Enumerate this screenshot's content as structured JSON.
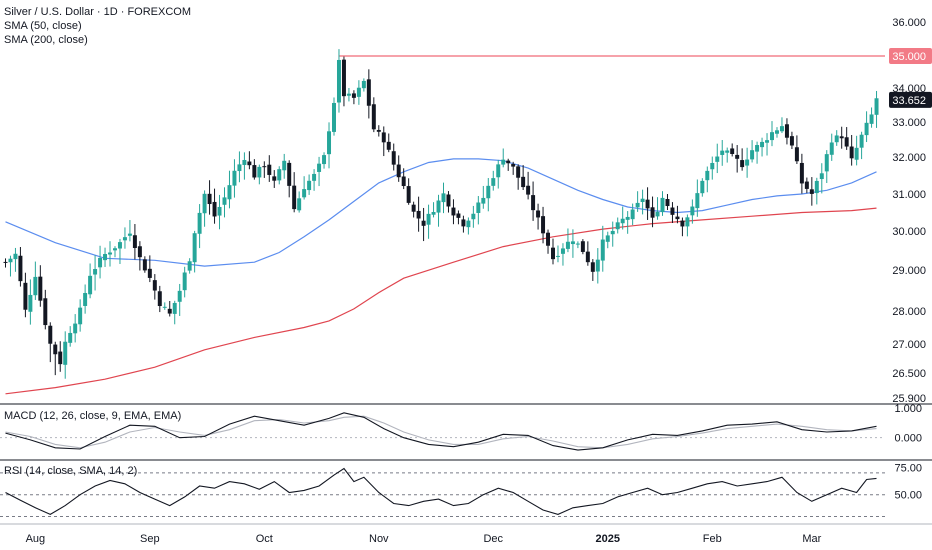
{
  "header": {
    "symbol_title": "Silver / U.S. Dollar · 1D · FOREXCOM",
    "sma50_label": "SMA (50, close)",
    "sma200_label": "SMA (200, close)"
  },
  "colors": {
    "up": "#26a69a",
    "down": "#131722",
    "sma50": "#5b8def",
    "sma200": "#e0454f",
    "resistance": "#f06a78",
    "macd_line": "#131722",
    "signal_line": "#b2b5be",
    "rsi_line": "#131722",
    "axis_text": "#131722",
    "price_tag_bg": "#131722",
    "resistance_tag_bg": "#f27a86"
  },
  "chart_data": {
    "type": "candlestick",
    "symbol": "Silver / U.S. Dollar",
    "interval": "1D",
    "price_axis": {
      "ticks": [
        "36.000",
        "35.000",
        "34.000",
        "33.000",
        "32.000",
        "31.000",
        "30.000",
        "29.000",
        "28.000",
        "27.000",
        "26.500",
        "25.900"
      ],
      "range": [
        25.9,
        36.3
      ]
    },
    "time_axis": {
      "labels": [
        "Aug",
        "Sep",
        "Oct",
        "Nov",
        "Dec",
        "2025",
        "Feb",
        "Mar"
      ],
      "label_bar_index": [
        6,
        29,
        52,
        75,
        98,
        121,
        142,
        162
      ]
    },
    "resistance": {
      "value": 35.0,
      "label": "35.000",
      "from_bar": 67
    },
    "last_price": {
      "value": 33.652,
      "label": "33.652"
    },
    "ohlc_points": [
      [
        0,
        29.2
      ],
      [
        2,
        29.4
      ],
      [
        4,
        28.0
      ],
      [
        6,
        28.9
      ],
      [
        9,
        27.0
      ],
      [
        11,
        26.7
      ],
      [
        13,
        27.4
      ],
      [
        15,
        28.0
      ],
      [
        17,
        28.9
      ],
      [
        20,
        29.4
      ],
      [
        23,
        29.7
      ],
      [
        25,
        30.0
      ],
      [
        27,
        29.3
      ],
      [
        29,
        28.8
      ],
      [
        31,
        28.2
      ],
      [
        33,
        27.9
      ],
      [
        35,
        28.5
      ],
      [
        37,
        29.3
      ],
      [
        38,
        30.0
      ],
      [
        40,
        31.0
      ],
      [
        42,
        30.4
      ],
      [
        44,
        30.9
      ],
      [
        46,
        31.6
      ],
      [
        48,
        32.0
      ],
      [
        50,
        31.5
      ],
      [
        52,
        31.8
      ],
      [
        54,
        31.3
      ],
      [
        56,
        31.9
      ],
      [
        58,
        30.6
      ],
      [
        60,
        31.2
      ],
      [
        62,
        31.5
      ],
      [
        64,
        32.0
      ],
      [
        66,
        33.6
      ],
      [
        67,
        34.8
      ],
      [
        68,
        33.8
      ],
      [
        70,
        33.7
      ],
      [
        72,
        34.2
      ],
      [
        74,
        32.8
      ],
      [
        76,
        32.5
      ],
      [
        78,
        31.8
      ],
      [
        80,
        31.2
      ],
      [
        82,
        30.5
      ],
      [
        84,
        30.2
      ],
      [
        86,
        30.6
      ],
      [
        88,
        31.0
      ],
      [
        90,
        30.5
      ],
      [
        92,
        30.2
      ],
      [
        94,
        30.5
      ],
      [
        96,
        30.9
      ],
      [
        98,
        31.5
      ],
      [
        100,
        32.0
      ],
      [
        102,
        31.7
      ],
      [
        104,
        31.2
      ],
      [
        106,
        30.6
      ],
      [
        108,
        30.0
      ],
      [
        110,
        29.3
      ],
      [
        112,
        29.6
      ],
      [
        114,
        29.8
      ],
      [
        116,
        29.5
      ],
      [
        118,
        29.0
      ],
      [
        120,
        29.7
      ],
      [
        122,
        30.0
      ],
      [
        124,
        30.3
      ],
      [
        126,
        30.5
      ],
      [
        128,
        30.9
      ],
      [
        130,
        30.3
      ],
      [
        132,
        30.9
      ],
      [
        134,
        30.5
      ],
      [
        136,
        30.2
      ],
      [
        138,
        30.6
      ],
      [
        140,
        31.4
      ],
      [
        142,
        31.8
      ],
      [
        144,
        32.2
      ],
      [
        146,
        32.0
      ],
      [
        148,
        31.8
      ],
      [
        150,
        32.2
      ],
      [
        152,
        32.4
      ],
      [
        154,
        32.7
      ],
      [
        156,
        32.9
      ],
      [
        158,
        32.3
      ],
      [
        160,
        31.3
      ],
      [
        162,
        31.0
      ],
      [
        164,
        31.6
      ],
      [
        166,
        32.5
      ],
      [
        168,
        32.6
      ],
      [
        170,
        31.9
      ],
      [
        172,
        32.6
      ],
      [
        174,
        33.2
      ],
      [
        175,
        33.7
      ]
    ],
    "sma50": [
      [
        0,
        30.25
      ],
      [
        10,
        29.7
      ],
      [
        20,
        29.3
      ],
      [
        30,
        29.25
      ],
      [
        40,
        29.1
      ],
      [
        50,
        29.2
      ],
      [
        55,
        29.45
      ],
      [
        60,
        29.85
      ],
      [
        65,
        30.3
      ],
      [
        70,
        30.8
      ],
      [
        75,
        31.3
      ],
      [
        80,
        31.6
      ],
      [
        85,
        31.85
      ],
      [
        90,
        31.95
      ],
      [
        95,
        31.95
      ],
      [
        100,
        31.9
      ],
      [
        105,
        31.7
      ],
      [
        110,
        31.4
      ],
      [
        115,
        31.1
      ],
      [
        120,
        30.85
      ],
      [
        125,
        30.65
      ],
      [
        130,
        30.55
      ],
      [
        135,
        30.5
      ],
      [
        140,
        30.55
      ],
      [
        145,
        30.7
      ],
      [
        150,
        30.85
      ],
      [
        155,
        30.95
      ],
      [
        160,
        31.0
      ],
      [
        165,
        31.1
      ],
      [
        170,
        31.3
      ],
      [
        175,
        31.6
      ]
    ],
    "sma200": [
      [
        0,
        26.0
      ],
      [
        10,
        26.15
      ],
      [
        20,
        26.35
      ],
      [
        30,
        26.6
      ],
      [
        40,
        26.9
      ],
      [
        50,
        27.2
      ],
      [
        60,
        27.5
      ],
      [
        65,
        27.7
      ],
      [
        70,
        28.05
      ],
      [
        75,
        28.45
      ],
      [
        80,
        28.8
      ],
      [
        90,
        29.2
      ],
      [
        100,
        29.6
      ],
      [
        110,
        29.85
      ],
      [
        120,
        30.05
      ],
      [
        130,
        30.2
      ],
      [
        140,
        30.3
      ],
      [
        150,
        30.4
      ],
      [
        160,
        30.5
      ],
      [
        170,
        30.55
      ],
      [
        175,
        30.62
      ]
    ],
    "macd": {
      "title": "MACD (12, 26, close, 9, EMA, EMA)",
      "ticks": [
        "1.000",
        "0.000"
      ],
      "range": [
        -0.9,
        1.4
      ],
      "macd_line": [
        [
          0,
          0.2
        ],
        [
          5,
          -0.1
        ],
        [
          10,
          -0.45
        ],
        [
          15,
          -0.5
        ],
        [
          20,
          0.05
        ],
        [
          25,
          0.55
        ],
        [
          30,
          0.5
        ],
        [
          35,
          0.0
        ],
        [
          40,
          0.05
        ],
        [
          45,
          0.6
        ],
        [
          50,
          0.95
        ],
        [
          55,
          0.75
        ],
        [
          60,
          0.55
        ],
        [
          65,
          0.85
        ],
        [
          68,
          1.1
        ],
        [
          72,
          0.9
        ],
        [
          76,
          0.4
        ],
        [
          80,
          0.0
        ],
        [
          85,
          -0.3
        ],
        [
          90,
          -0.4
        ],
        [
          95,
          -0.2
        ],
        [
          100,
          0.15
        ],
        [
          105,
          0.1
        ],
        [
          110,
          -0.35
        ],
        [
          115,
          -0.55
        ],
        [
          120,
          -0.45
        ],
        [
          125,
          -0.1
        ],
        [
          130,
          0.15
        ],
        [
          135,
          0.1
        ],
        [
          140,
          0.3
        ],
        [
          145,
          0.55
        ],
        [
          150,
          0.6
        ],
        [
          155,
          0.7
        ],
        [
          160,
          0.35
        ],
        [
          165,
          0.25
        ],
        [
          170,
          0.3
        ],
        [
          175,
          0.5
        ]
      ],
      "signal_line": [
        [
          0,
          0.25
        ],
        [
          5,
          0.05
        ],
        [
          10,
          -0.3
        ],
        [
          15,
          -0.45
        ],
        [
          20,
          -0.2
        ],
        [
          25,
          0.25
        ],
        [
          30,
          0.45
        ],
        [
          35,
          0.25
        ],
        [
          40,
          0.1
        ],
        [
          45,
          0.35
        ],
        [
          50,
          0.75
        ],
        [
          55,
          0.8
        ],
        [
          60,
          0.65
        ],
        [
          65,
          0.75
        ],
        [
          68,
          0.9
        ],
        [
          72,
          0.95
        ],
        [
          76,
          0.65
        ],
        [
          80,
          0.25
        ],
        [
          85,
          -0.1
        ],
        [
          90,
          -0.3
        ],
        [
          95,
          -0.3
        ],
        [
          100,
          -0.05
        ],
        [
          105,
          0.05
        ],
        [
          110,
          -0.15
        ],
        [
          115,
          -0.4
        ],
        [
          120,
          -0.45
        ],
        [
          125,
          -0.3
        ],
        [
          130,
          -0.05
        ],
        [
          135,
          0.05
        ],
        [
          140,
          0.2
        ],
        [
          145,
          0.4
        ],
        [
          150,
          0.5
        ],
        [
          155,
          0.6
        ],
        [
          160,
          0.5
        ],
        [
          165,
          0.35
        ],
        [
          170,
          0.3
        ],
        [
          175,
          0.4
        ]
      ]
    },
    "rsi": {
      "title": "RSI (14, close, SMA, 14, 2)",
      "ticks": [
        "75.00",
        "50.00"
      ],
      "range": [
        25,
        80
      ],
      "bands": [
        70,
        50,
        30
      ],
      "rsi_line": [
        [
          0,
          52
        ],
        [
          3,
          45
        ],
        [
          6,
          38
        ],
        [
          9,
          32
        ],
        [
          12,
          40
        ],
        [
          15,
          50
        ],
        [
          18,
          58
        ],
        [
          21,
          63
        ],
        [
          24,
          60
        ],
        [
          27,
          52
        ],
        [
          30,
          46
        ],
        [
          33,
          40
        ],
        [
          36,
          48
        ],
        [
          39,
          58
        ],
        [
          42,
          56
        ],
        [
          45,
          62
        ],
        [
          48,
          60
        ],
        [
          51,
          55
        ],
        [
          54,
          62
        ],
        [
          57,
          52
        ],
        [
          60,
          54
        ],
        [
          63,
          58
        ],
        [
          66,
          68
        ],
        [
          68,
          74
        ],
        [
          70,
          62
        ],
        [
          72,
          66
        ],
        [
          75,
          52
        ],
        [
          78,
          42
        ],
        [
          81,
          40
        ],
        [
          84,
          44
        ],
        [
          87,
          46
        ],
        [
          90,
          40
        ],
        [
          93,
          42
        ],
        [
          96,
          50
        ],
        [
          99,
          56
        ],
        [
          102,
          52
        ],
        [
          105,
          44
        ],
        [
          108,
          36
        ],
        [
          111,
          32
        ],
        [
          114,
          38
        ],
        [
          117,
          40
        ],
        [
          120,
          42
        ],
        [
          123,
          48
        ],
        [
          126,
          52
        ],
        [
          129,
          56
        ],
        [
          132,
          50
        ],
        [
          135,
          52
        ],
        [
          138,
          56
        ],
        [
          141,
          60
        ],
        [
          144,
          62
        ],
        [
          147,
          58
        ],
        [
          150,
          60
        ],
        [
          153,
          62
        ],
        [
          156,
          66
        ],
        [
          159,
          52
        ],
        [
          162,
          44
        ],
        [
          165,
          50
        ],
        [
          168,
          56
        ],
        [
          171,
          52
        ],
        [
          173,
          64
        ],
        [
          175,
          65
        ]
      ]
    }
  }
}
